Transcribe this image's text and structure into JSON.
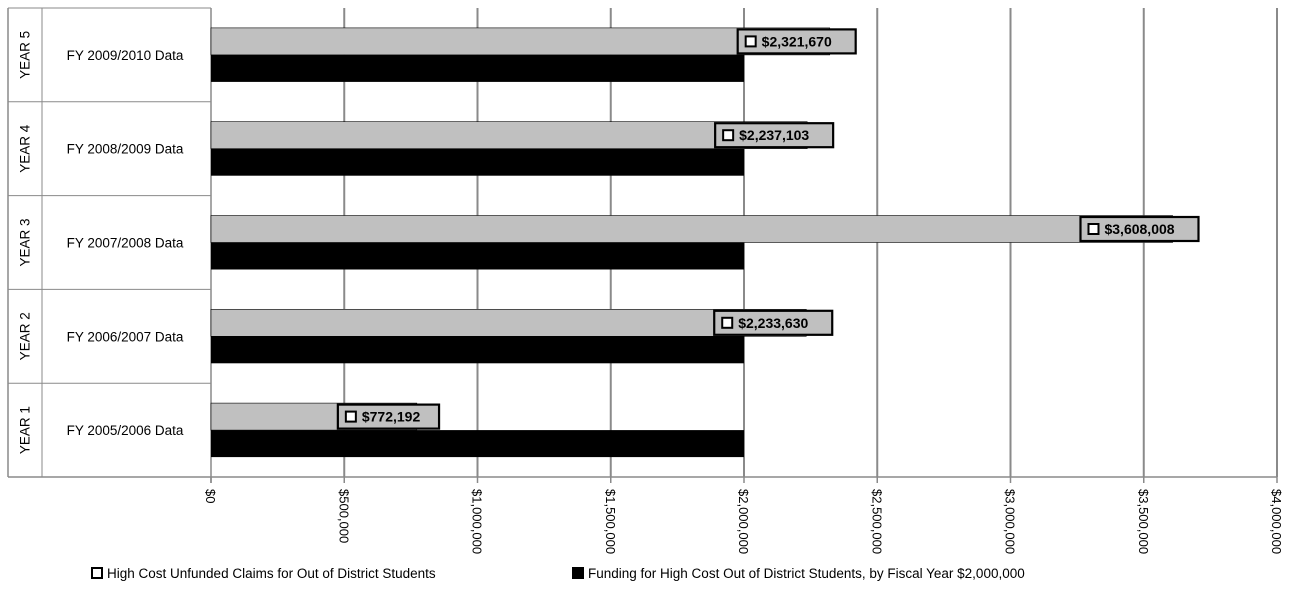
{
  "chart_data": {
    "type": "bar",
    "orientation": "horizontal",
    "groups": [
      "YEAR 1",
      "YEAR 2",
      "YEAR 3",
      "YEAR 4",
      "YEAR 5"
    ],
    "categories": [
      "FY 2005/2006 Data",
      "FY 2006/2007 Data",
      "FY 2007/2008 Data",
      "FY 2008/2009 Data",
      "FY 2009/2010 Data"
    ],
    "series": [
      {
        "name": "High Cost Unfunded Claims for Out of District Students",
        "color": "#c0c0c0",
        "values": [
          772192,
          2233630,
          3608008,
          2237103,
          2321670
        ],
        "labels": [
          "$772,192",
          "$2,233,630",
          "$3,608,008",
          "$2,237,103",
          "$2,321,670"
        ]
      },
      {
        "name": "Funding for High Cost Out of District Students, by Fiscal Year $2,000,000",
        "color": "#000000",
        "values": [
          2000000,
          2000000,
          2000000,
          2000000,
          2000000
        ]
      }
    ],
    "xlim": [
      0,
      4000000
    ],
    "x_ticks": [
      0,
      500000,
      1000000,
      1500000,
      2000000,
      2500000,
      3000000,
      3500000,
      4000000
    ],
    "x_tick_labels": [
      "$0",
      "$500,000",
      "$1,000,000",
      "$1,500,000",
      "$2,000,000",
      "$2,500,000",
      "$3,000,000",
      "$3,500,000",
      "$4,000,000"
    ],
    "grid": true,
    "legend": "bottom"
  }
}
